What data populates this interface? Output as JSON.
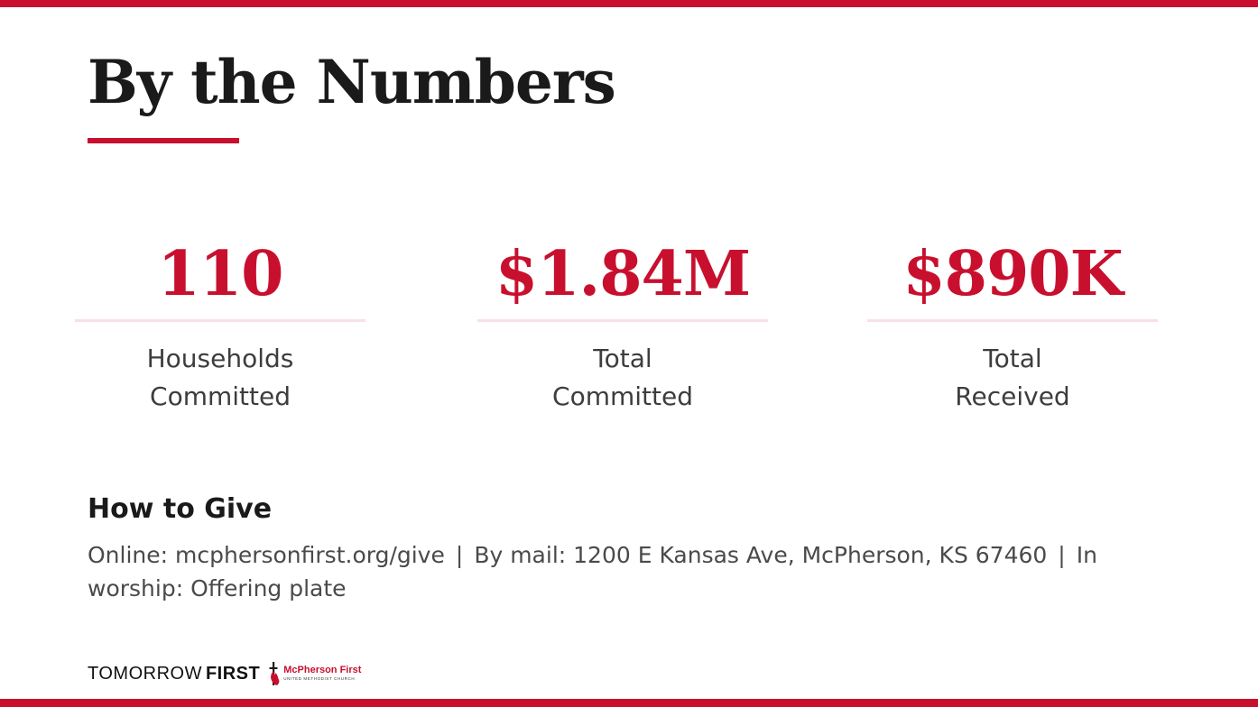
{
  "slide": {
    "title": "By the Numbers"
  },
  "stats": [
    {
      "value": "110",
      "label_line1": "Households",
      "label_line2": "Committed"
    },
    {
      "value": "$1.84M",
      "label_line1": "Total",
      "label_line2": "Committed"
    },
    {
      "value": "$890K",
      "label_line1": "Total",
      "label_line2": "Received"
    }
  ],
  "give": {
    "heading": "How to Give",
    "online": "Online: mcphersonfirst.org/give",
    "separator": "|",
    "mail": "By mail: 1200 E Kansas Ave, McPherson, KS 67460",
    "worship": "In worship: Offering plate"
  },
  "footer": {
    "brand_light": "TOMORROW",
    "brand_bold": "FIRST",
    "church_name": "McPherson First",
    "church_sub": "UNITED METHODIST CHURCH",
    "logo_icon": "cross-and-flame-icon"
  },
  "colors": {
    "accent": "#c8102e",
    "divider": "#f8e1e4",
    "title": "#1a1a1a",
    "body_text": "#4a4a4a"
  }
}
